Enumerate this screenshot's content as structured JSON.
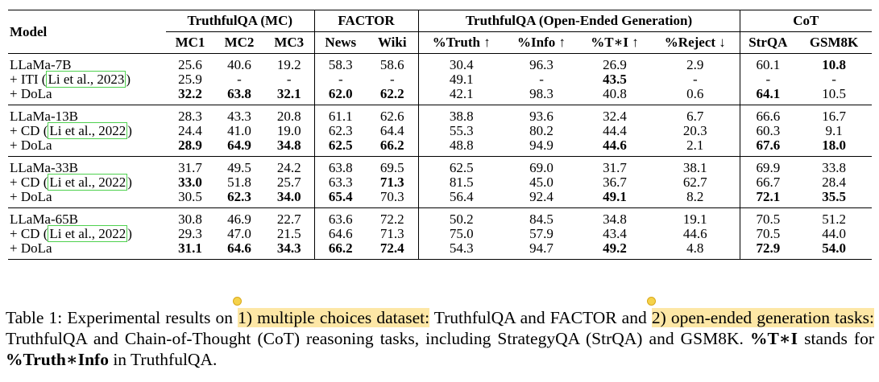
{
  "table": {
    "model_header": "Model",
    "groups": [
      {
        "label": "TruthfulQA (MC)",
        "span": 3
      },
      {
        "label": "FACTOR",
        "span": 2
      },
      {
        "label": "TruthfulQA (Open-Ended Generation)",
        "span": 4
      },
      {
        "label": "CoT",
        "span": 2
      }
    ],
    "columns": [
      "MC1",
      "MC2",
      "MC3",
      "News",
      "Wiki",
      "%Truth ↑",
      "%Info ↑",
      "%T∗I ↑",
      "%Reject ↓",
      "StrQA",
      "GSM8K"
    ],
    "blocks": [
      {
        "rows": [
          {
            "model": "LLaMa-7B",
            "values": [
              "25.6",
              "40.6",
              "19.2",
              "58.3",
              "58.6",
              "30.4",
              "96.3",
              "26.9",
              "2.9",
              "60.1",
              "10.8"
            ],
            "bold": [
              10
            ]
          },
          {
            "model_prefix": "+ ITI (",
            "cite": "Li et al., 2023",
            "model_suffix": ")",
            "values": [
              "25.9",
              "-",
              "-",
              "-",
              "-",
              "49.1",
              "-",
              "43.5",
              "-",
              "-",
              "-"
            ],
            "bold": [
              7
            ]
          },
          {
            "model": "+ DoLa",
            "values": [
              "32.2",
              "63.8",
              "32.1",
              "62.0",
              "62.2",
              "42.1",
              "98.3",
              "40.8",
              "0.6",
              "64.1",
              "10.5"
            ],
            "bold": [
              0,
              1,
              2,
              3,
              4,
              9
            ]
          }
        ]
      },
      {
        "rows": [
          {
            "model": "LLaMa-13B",
            "values": [
              "28.3",
              "43.3",
              "20.8",
              "61.1",
              "62.6",
              "38.8",
              "93.6",
              "32.4",
              "6.7",
              "66.6",
              "16.7"
            ],
            "bold": []
          },
          {
            "model_prefix": "+ CD (",
            "cite": "Li et al., 2022",
            "model_suffix": ")",
            "values": [
              "24.4",
              "41.0",
              "19.0",
              "62.3",
              "64.4",
              "55.3",
              "80.2",
              "44.4",
              "20.3",
              "60.3",
              "9.1"
            ],
            "bold": []
          },
          {
            "model": "+ DoLa",
            "values": [
              "28.9",
              "64.9",
              "34.8",
              "62.5",
              "66.2",
              "48.8",
              "94.9",
              "44.6",
              "2.1",
              "67.6",
              "18.0"
            ],
            "bold": [
              0,
              1,
              2,
              3,
              4,
              7,
              9,
              10
            ]
          }
        ]
      },
      {
        "rows": [
          {
            "model": "LLaMa-33B",
            "values": [
              "31.7",
              "49.5",
              "24.2",
              "63.8",
              "69.5",
              "62.5",
              "69.0",
              "31.7",
              "38.1",
              "69.9",
              "33.8"
            ],
            "bold": []
          },
          {
            "model_prefix": "+ CD (",
            "cite": "Li et al., 2022",
            "model_suffix": ")",
            "values": [
              "33.0",
              "51.8",
              "25.7",
              "63.3",
              "71.3",
              "81.5",
              "45.0",
              "36.7",
              "62.7",
              "66.7",
              "28.4"
            ],
            "bold": [
              0,
              4
            ]
          },
          {
            "model": "+ DoLa",
            "values": [
              "30.5",
              "62.3",
              "34.0",
              "65.4",
              "70.3",
              "56.4",
              "92.4",
              "49.1",
              "8.2",
              "72.1",
              "35.5"
            ],
            "bold": [
              1,
              2,
              3,
              7,
              9,
              10
            ]
          }
        ]
      },
      {
        "rows": [
          {
            "model": "LLaMa-65B",
            "values": [
              "30.8",
              "46.9",
              "22.7",
              "63.6",
              "72.2",
              "50.2",
              "84.5",
              "34.8",
              "19.1",
              "70.5",
              "51.2"
            ],
            "bold": []
          },
          {
            "model_prefix": "+ CD (",
            "cite": "Li et al., 2022",
            "model_suffix": ")",
            "values": [
              "29.3",
              "47.0",
              "21.5",
              "64.6",
              "71.3",
              "75.0",
              "57.9",
              "43.4",
              "44.6",
              "70.5",
              "44.0"
            ],
            "bold": []
          },
          {
            "model": "+ DoLa",
            "values": [
              "31.1",
              "64.6",
              "34.3",
              "66.2",
              "72.4",
              "54.3",
              "94.7",
              "49.2",
              "4.8",
              "72.9",
              "54.0"
            ],
            "bold": [
              0,
              1,
              2,
              3,
              4,
              7,
              9,
              10
            ]
          }
        ]
      }
    ]
  },
  "caption": {
    "prefix": "Table 1: Experimental results on ",
    "highlight1": "1) multiple choices dataset:",
    "middle1": " TruthfulQA and FACTOR and ",
    "highlight2": "2) open-ended generation tasks:",
    "middle2": " TruthfulQA and Chain-of-Thought (CoT) reasoning tasks, including StrategyQA (StrQA) and GSM8K. ",
    "bold1": "%T∗I",
    "middle3": " stands for ",
    "bold2": "%Truth∗Info",
    "suffix": " in TruthfulQA."
  },
  "colors": {
    "highlight": "#fde7a6",
    "cite_border": "#4ed14e",
    "note_dot": "#f5d24a"
  }
}
